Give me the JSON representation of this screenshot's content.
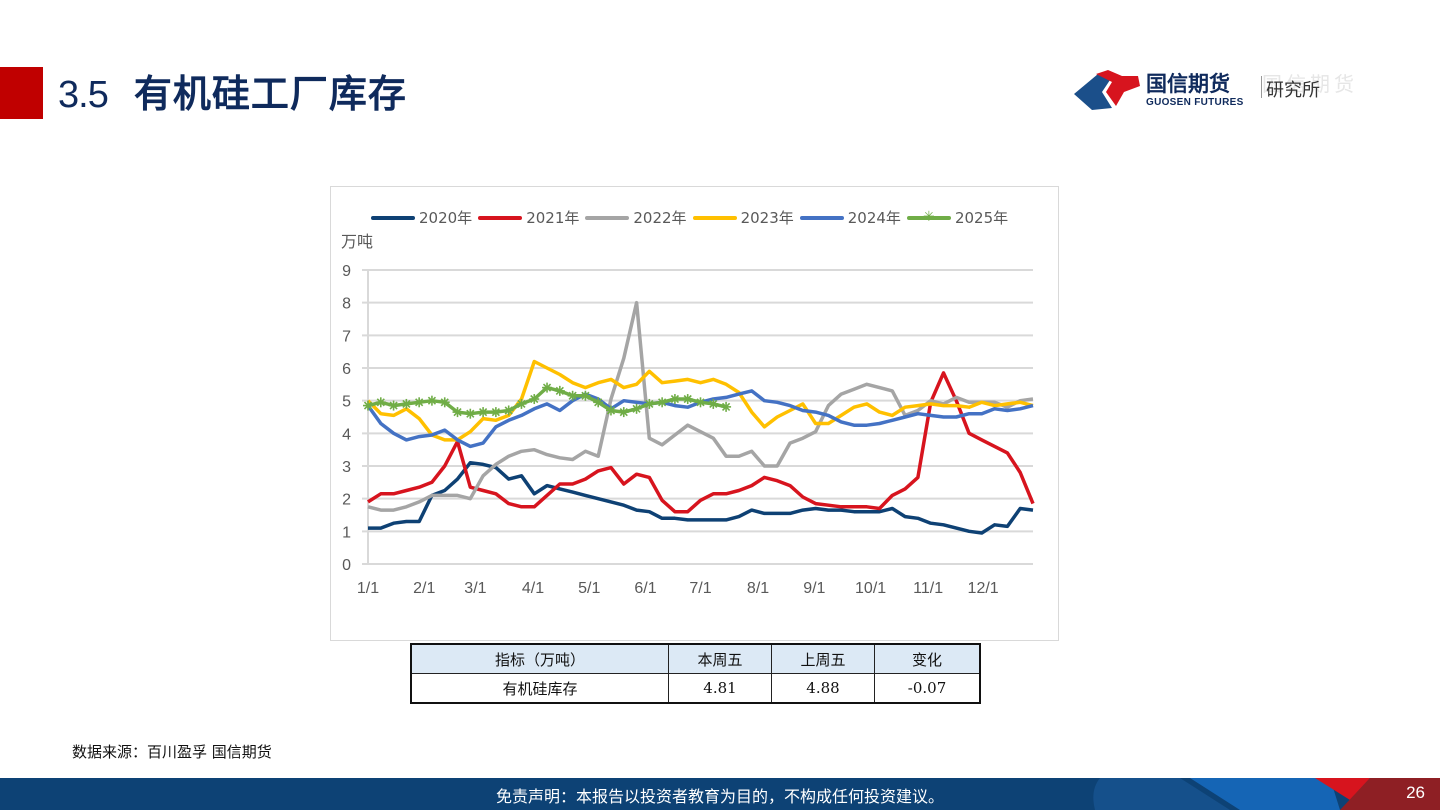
{
  "header": {
    "section_number": "3.5",
    "title": "有机硅工厂库存",
    "logo": {
      "name_cn": "国信期货",
      "name_en": "GUOSEN FUTURES",
      "institute": "研究所",
      "colors": {
        "red": "#d7141e",
        "navy": "#1b4f8a"
      }
    }
  },
  "chart_data": {
    "type": "line",
    "title": "",
    "xlabel": "",
    "ylabel": "万吨",
    "ylim": [
      0,
      9
    ],
    "yticks": [
      0,
      1,
      2,
      3,
      4,
      5,
      6,
      7,
      8,
      9
    ],
    "xtick_labels": [
      "1/1",
      "2/1",
      "3/1",
      "4/1",
      "5/1",
      "6/1",
      "7/1",
      "8/1",
      "9/1",
      "10/1",
      "11/1",
      "12/1"
    ],
    "x_unit": "week of year (1-52)",
    "grid": true,
    "legend_position": "top",
    "series": [
      {
        "name": "2020年",
        "color": "#0e4174",
        "values": [
          1.1,
          1.1,
          1.25,
          1.3,
          1.3,
          2.1,
          2.25,
          2.6,
          3.1,
          3.05,
          2.95,
          2.6,
          2.7,
          2.15,
          2.4,
          2.3,
          2.2,
          2.1,
          2.0,
          1.9,
          1.8,
          1.65,
          1.6,
          1.4,
          1.4,
          1.35,
          1.35,
          1.35,
          1.35,
          1.45,
          1.65,
          1.55,
          1.55,
          1.55,
          1.65,
          1.7,
          1.65,
          1.65,
          1.6,
          1.6,
          1.6,
          1.7,
          1.45,
          1.4,
          1.25,
          1.2,
          1.1,
          1.0,
          0.95,
          1.2,
          1.15,
          1.7,
          1.65
        ]
      },
      {
        "name": "2021年",
        "color": "#d7141e",
        "values": [
          1.9,
          2.15,
          2.15,
          2.25,
          2.35,
          2.5,
          3.0,
          3.75,
          2.35,
          2.25,
          2.15,
          1.85,
          1.75,
          1.75,
          2.1,
          2.45,
          2.45,
          2.6,
          2.85,
          2.95,
          2.45,
          2.75,
          2.65,
          1.95,
          1.6,
          1.6,
          1.95,
          2.15,
          2.15,
          2.25,
          2.4,
          2.65,
          2.55,
          2.4,
          2.05,
          1.85,
          1.8,
          1.75,
          1.75,
          1.75,
          1.7,
          2.1,
          2.3,
          2.65,
          4.95,
          5.85,
          5.0,
          4.0,
          3.8,
          3.6,
          3.4,
          2.8,
          1.85
        ]
      },
      {
        "name": "2022年",
        "color": "#a5a5a5",
        "values": [
          1.75,
          1.65,
          1.65,
          1.75,
          1.9,
          2.1,
          2.1,
          2.1,
          2.0,
          2.7,
          3.05,
          3.3,
          3.45,
          3.5,
          3.35,
          3.25,
          3.2,
          3.45,
          3.3,
          5.05,
          6.3,
          8.0,
          3.85,
          3.65,
          3.95,
          4.25,
          4.05,
          3.85,
          3.3,
          3.3,
          3.45,
          3.0,
          3.0,
          3.7,
          3.85,
          4.05,
          4.85,
          5.2,
          5.35,
          5.5,
          5.4,
          5.3,
          4.55,
          4.7,
          5.0,
          4.9,
          5.1,
          4.95,
          4.95,
          4.95,
          4.8,
          5.0,
          5.05
        ]
      },
      {
        "name": "2023年",
        "color": "#ffc000",
        "values": [
          5.0,
          4.6,
          4.55,
          4.75,
          4.45,
          3.95,
          3.8,
          3.8,
          4.05,
          4.45,
          4.4,
          4.55,
          5.05,
          6.2,
          6.0,
          5.8,
          5.55,
          5.4,
          5.55,
          5.65,
          5.4,
          5.5,
          5.9,
          5.55,
          5.6,
          5.65,
          5.55,
          5.65,
          5.5,
          5.25,
          4.65,
          4.2,
          4.5,
          4.7,
          4.9,
          4.3,
          4.3,
          4.55,
          4.8,
          4.9,
          4.65,
          4.55,
          4.8,
          4.85,
          4.9,
          4.85,
          4.85,
          4.8,
          4.95,
          4.85,
          4.9,
          4.95,
          4.85
        ]
      },
      {
        "name": "2024年",
        "color": "#4472c4",
        "values": [
          4.85,
          4.3,
          4.0,
          3.8,
          3.9,
          3.95,
          4.1,
          3.8,
          3.6,
          3.7,
          4.2,
          4.4,
          4.55,
          4.75,
          4.9,
          4.7,
          5.0,
          5.2,
          5.05,
          4.75,
          5.0,
          4.95,
          4.9,
          4.95,
          4.85,
          4.8,
          4.95,
          5.05,
          5.1,
          5.2,
          5.3,
          5.0,
          4.95,
          4.85,
          4.7,
          4.65,
          4.55,
          4.35,
          4.25,
          4.25,
          4.3,
          4.4,
          4.5,
          4.6,
          4.55,
          4.5,
          4.5,
          4.6,
          4.6,
          4.75,
          4.7,
          4.75,
          4.85
        ]
      },
      {
        "name": "2025年",
        "color": "#70ad47",
        "marker": "asterisk",
        "values": [
          4.85,
          4.95,
          4.85,
          4.9,
          4.95,
          5.0,
          4.95,
          4.65,
          4.6,
          4.65,
          4.65,
          4.7,
          4.9,
          5.05,
          5.4,
          5.3,
          5.15,
          5.15,
          4.95,
          4.7,
          4.65,
          4.75,
          4.9,
          4.95,
          5.05,
          5.05,
          4.95,
          4.9,
          4.81
        ]
      }
    ]
  },
  "table": {
    "headers": [
      "指标（万吨）",
      "本周五",
      "上周五",
      "变化"
    ],
    "rows": [
      [
        "有机硅库存",
        "4.81",
        "4.88",
        "-0.07"
      ]
    ]
  },
  "source": "数据来源：百川盈孚  国信期货",
  "footer": {
    "disclaimer": "免责声明：本报告以投资者教育为目的，不构成任何投资建议。",
    "page_number": "26"
  }
}
